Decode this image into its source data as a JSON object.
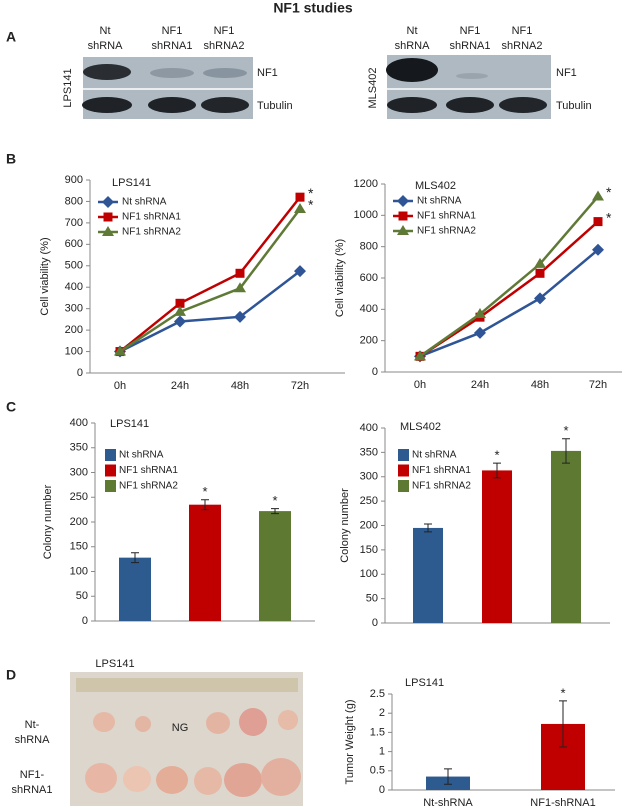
{
  "title": "NF1 studies",
  "panel_labels": [
    "A",
    "B",
    "C",
    "D"
  ],
  "blots": [
    {
      "cell_line": "LPS141",
      "lanes": [
        [
          "Nt",
          "shRNA"
        ],
        [
          "NF1",
          "shRNA1"
        ],
        [
          "NF1",
          "shRNA2"
        ]
      ],
      "rows": [
        "NF1",
        "Tubulin"
      ]
    },
    {
      "cell_line": "MLS402",
      "lanes": [
        [
          "Nt",
          "shRNA"
        ],
        [
          "NF1",
          "shRNA1"
        ],
        [
          "NF1",
          "shRNA2"
        ]
      ],
      "rows": [
        "NF1",
        "Tubulin"
      ]
    }
  ],
  "photo": {
    "title": "LPS141",
    "rows": [
      [
        "Nt-",
        "shRNA"
      ],
      [
        "NF1-",
        "shRNA1"
      ]
    ],
    "annotation": "NG"
  },
  "chart_data": [
    {
      "type": "line",
      "title": "LPS141",
      "ylabel": "Cell viability (%)",
      "categories": [
        "0h",
        "24h",
        "48h",
        "72h"
      ],
      "ylim": [
        0,
        900
      ],
      "yticks": [
        0,
        100,
        200,
        300,
        400,
        500,
        600,
        700,
        800,
        900
      ],
      "legend": "upper left",
      "series": [
        {
          "name": "Nt shRNA",
          "color": "#2f5597",
          "marker": "diamond",
          "values": [
            100,
            240,
            262,
            475
          ]
        },
        {
          "name": "NF1 shRNA1",
          "color": "#c00000",
          "marker": "square",
          "values": [
            100,
            325,
            465,
            820
          ],
          "annotation": "*"
        },
        {
          "name": "NF1 shRNA2",
          "color": "#5f7a36",
          "marker": "triangle",
          "values": [
            100,
            285,
            395,
            765
          ],
          "annotation": "*"
        }
      ]
    },
    {
      "type": "line",
      "title": "MLS402",
      "ylabel": "Cell viability (%)",
      "categories": [
        "0h",
        "24h",
        "48h",
        "72h"
      ],
      "ylim": [
        0,
        1200
      ],
      "yticks": [
        0,
        200,
        400,
        600,
        800,
        1000,
        1200
      ],
      "legend": "upper left",
      "series": [
        {
          "name": "Nt shRNA",
          "color": "#2f5597",
          "marker": "diamond",
          "values": [
            100,
            250,
            470,
            780
          ]
        },
        {
          "name": "NF1 shRNA1",
          "color": "#c00000",
          "marker": "square",
          "values": [
            100,
            350,
            630,
            960
          ],
          "annotation": "*"
        },
        {
          "name": "NF1 shRNA2",
          "color": "#5f7a36",
          "marker": "triangle",
          "values": [
            100,
            370,
            690,
            1120
          ],
          "annotation": "*"
        }
      ]
    },
    {
      "type": "bar",
      "title": "LPS141",
      "ylabel": "Colony number",
      "categories": [
        "Nt shRNA",
        "NF1 shRNA1",
        "NF1 shRNA2"
      ],
      "values": [
        128,
        235,
        222
      ],
      "errors": [
        10,
        10,
        5
      ],
      "colors": [
        "#2e5b8f",
        "#c00000",
        "#5e7a32"
      ],
      "significance": [
        null,
        "*",
        "*"
      ],
      "ylim": [
        0,
        400
      ],
      "yticks": [
        0,
        50,
        100,
        150,
        200,
        250,
        300,
        350,
        400
      ],
      "legend": "upper left"
    },
    {
      "type": "bar",
      "title": "MLS402",
      "ylabel": "Colony number",
      "categories": [
        "Nt shRNA",
        "NF1 shRNA1",
        "NF1 shRNA2"
      ],
      "values": [
        195,
        313,
        353
      ],
      "errors": [
        8,
        15,
        25
      ],
      "colors": [
        "#2e5b8f",
        "#c00000",
        "#5e7a32"
      ],
      "significance": [
        null,
        "*",
        "*"
      ],
      "ylim": [
        0,
        400
      ],
      "yticks": [
        0,
        50,
        100,
        150,
        200,
        250,
        300,
        350,
        400
      ],
      "legend": "upper left"
    },
    {
      "type": "bar",
      "title": "LPS141",
      "ylabel": "Tumor Weight (g)",
      "categories": [
        "Nt-shRNA",
        "NF1-shRNA1"
      ],
      "values": [
        0.35,
        1.72
      ],
      "errors": [
        0.2,
        0.6
      ],
      "colors": [
        "#2e5b8f",
        "#c00000"
      ],
      "significance": [
        null,
        "*"
      ],
      "ylim": [
        0,
        2.5
      ],
      "yticks": [
        0,
        0.5,
        1,
        1.5,
        2,
        2.5
      ]
    }
  ]
}
